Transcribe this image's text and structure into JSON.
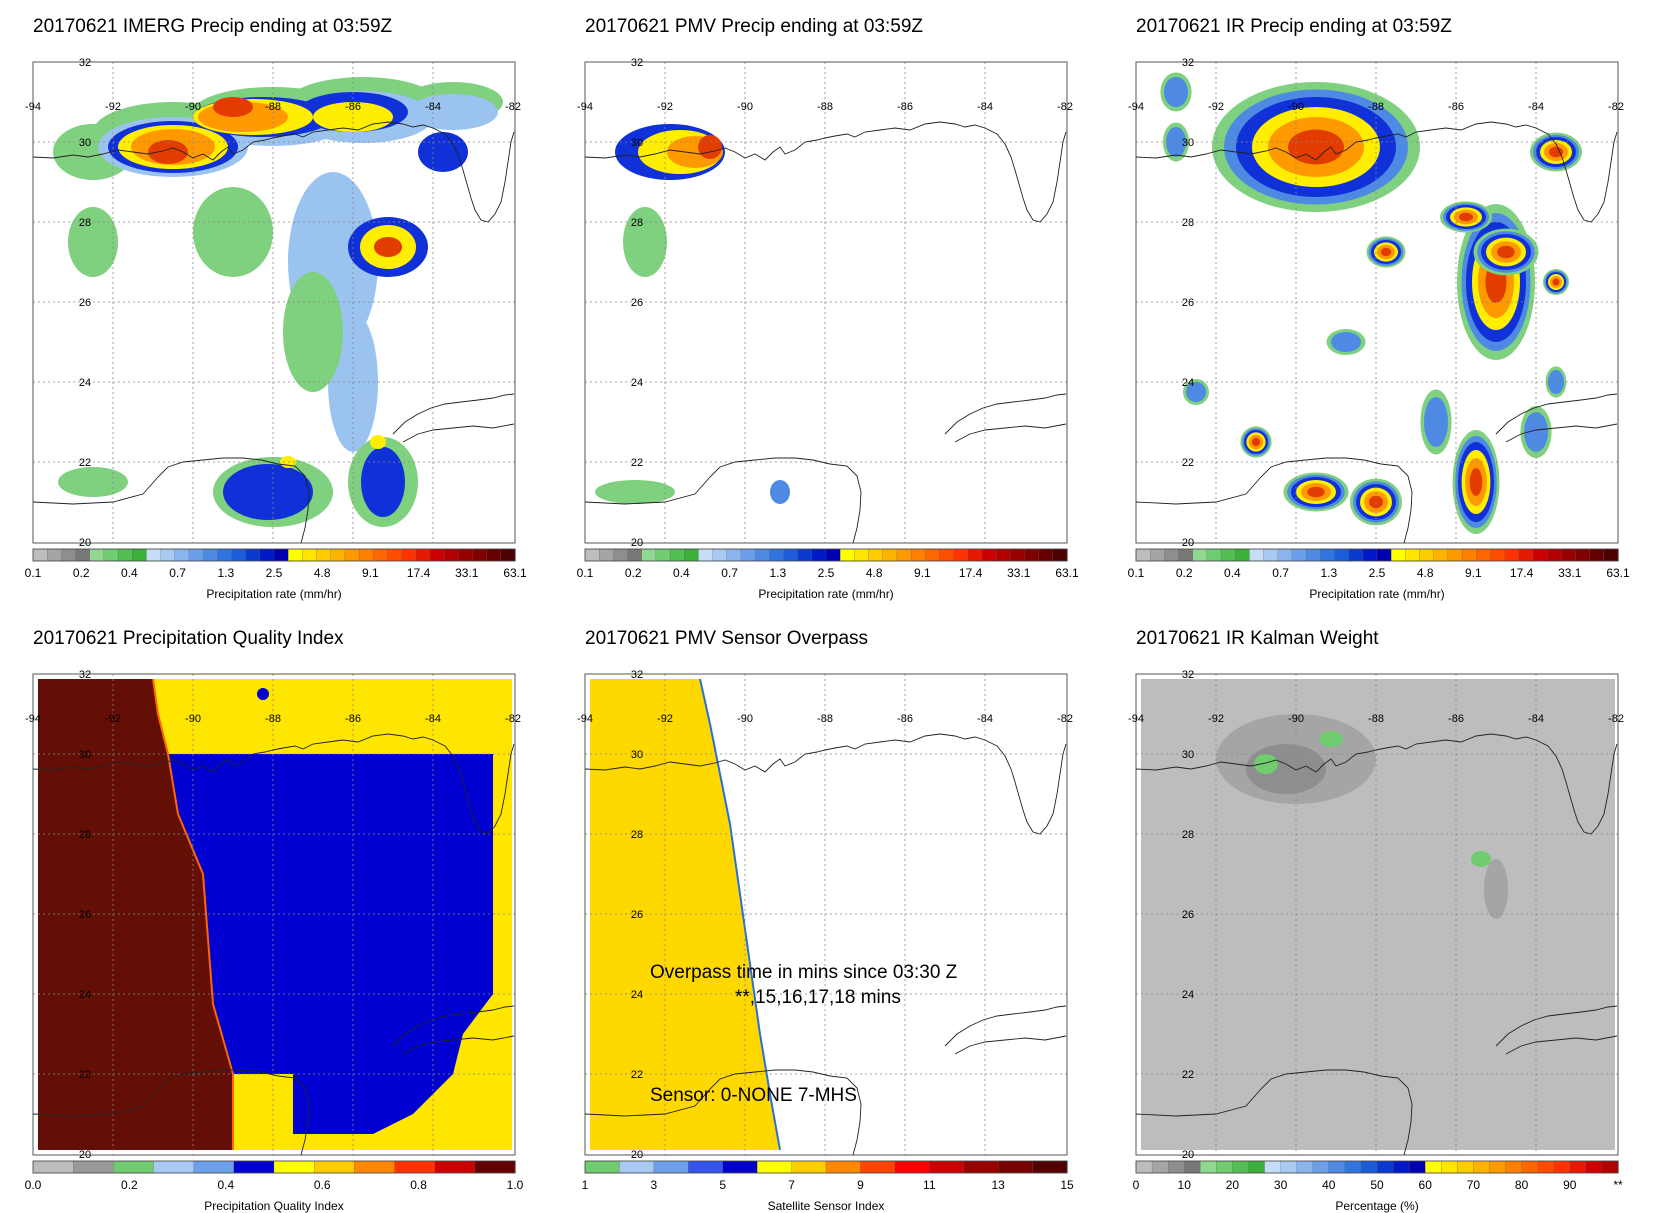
{
  "panels": [
    {
      "id": "imerg",
      "title": "20170621 IMERG Precip ending at 03:59Z",
      "lon_ticks": [
        "-94",
        "-92",
        "-90",
        "-88",
        "-86",
        "-84",
        "-82"
      ],
      "lat_ticks": [
        "32",
        "30",
        "28",
        "26",
        "24",
        "22",
        "20"
      ],
      "colorbar": {
        "title": "Precipitation rate (mm/hr)",
        "labels": [
          "0.1",
          "0.2",
          "0.4",
          "0.7",
          "1.3",
          "2.5",
          "4.8",
          "9.1",
          "17.4",
          "33.1",
          "63.1"
        ],
        "colors": [
          "#bdbdbd",
          "#a5a5a5",
          "#8e8e8e",
          "#777777",
          "#8fd88f",
          "#6fcc6f",
          "#52bf52",
          "#3ab23a",
          "#c6ddf7",
          "#a8c9f2",
          "#8ab4ee",
          "#6c9fe9",
          "#4e8ae4",
          "#3075df",
          "#1c5bd9",
          "#0a3ad2",
          "#0019c8",
          "#0000b0",
          "#ffff00",
          "#ffe600",
          "#ffcc00",
          "#ffb300",
          "#ff9900",
          "#ff8000",
          "#ff6600",
          "#ff4d00",
          "#ff3300",
          "#e61a00",
          "#cc0000",
          "#b30000",
          "#990000",
          "#800000",
          "#660000",
          "#4d0000"
        ]
      }
    },
    {
      "id": "pmv",
      "title": "20170621 PMV Precip ending at 03:59Z",
      "lon_ticks": [
        "-94",
        "-92",
        "-90",
        "-88",
        "-86",
        "-84",
        "-82"
      ],
      "lat_ticks": [
        "32",
        "30",
        "28",
        "26",
        "24",
        "22",
        "20"
      ],
      "colorbar": {
        "title": "Precipitation rate (mm/hr)",
        "labels": [
          "0.1",
          "0.2",
          "0.4",
          "0.7",
          "1.3",
          "2.5",
          "4.8",
          "9.1",
          "17.4",
          "33.1",
          "63.1"
        ],
        "colors": [
          "#bdbdbd",
          "#a5a5a5",
          "#8e8e8e",
          "#777777",
          "#8fd88f",
          "#6fcc6f",
          "#52bf52",
          "#3ab23a",
          "#c6ddf7",
          "#a8c9f2",
          "#8ab4ee",
          "#6c9fe9",
          "#4e8ae4",
          "#3075df",
          "#1c5bd9",
          "#0a3ad2",
          "#0019c8",
          "#0000b0",
          "#ffff00",
          "#ffe600",
          "#ffcc00",
          "#ffb300",
          "#ff9900",
          "#ff8000",
          "#ff6600",
          "#ff4d00",
          "#ff3300",
          "#e61a00",
          "#cc0000",
          "#b30000",
          "#990000",
          "#800000",
          "#660000",
          "#4d0000"
        ]
      }
    },
    {
      "id": "ir",
      "title": "20170621 IR Precip ending at 03:59Z",
      "lon_ticks": [
        "-94",
        "-92",
        "-90",
        "-88",
        "-86",
        "-84",
        "-82"
      ],
      "lat_ticks": [
        "32",
        "30",
        "28",
        "26",
        "24",
        "22",
        "20"
      ],
      "colorbar": {
        "title": "Precipitation rate (mm/hr)",
        "labels": [
          "0.1",
          "0.2",
          "0.4",
          "0.7",
          "1.3",
          "2.5",
          "4.8",
          "9.1",
          "17.4",
          "33.1",
          "63.1"
        ],
        "colors": [
          "#bdbdbd",
          "#a5a5a5",
          "#8e8e8e",
          "#777777",
          "#8fd88f",
          "#6fcc6f",
          "#52bf52",
          "#3ab23a",
          "#c6ddf7",
          "#a8c9f2",
          "#8ab4ee",
          "#6c9fe9",
          "#4e8ae4",
          "#3075df",
          "#1c5bd9",
          "#0a3ad2",
          "#0019c8",
          "#0000b0",
          "#ffff00",
          "#ffe600",
          "#ffcc00",
          "#ffb300",
          "#ff9900",
          "#ff8000",
          "#ff6600",
          "#ff4d00",
          "#ff3300",
          "#e61a00",
          "#cc0000",
          "#b30000",
          "#990000",
          "#800000",
          "#660000",
          "#4d0000"
        ]
      }
    },
    {
      "id": "pqi",
      "title": "20170621 Precipitation Quality Index",
      "lon_ticks": [
        "-94",
        "-92",
        "-90",
        "-88",
        "-86",
        "-84",
        "-82"
      ],
      "lat_ticks": [
        "32",
        "30",
        "28",
        "26",
        "24",
        "22",
        "20"
      ],
      "colorbar": {
        "title": "Precipitation Quality Index",
        "labels": [
          "0.0",
          "0.2",
          "0.4",
          "0.6",
          "0.8",
          "1.0"
        ],
        "colors": [
          "#bdbdbd",
          "#999999",
          "#6fcc6f",
          "#a8c9f2",
          "#6c9fe9",
          "#0000d0",
          "#ffff00",
          "#ffcc00",
          "#ff8800",
          "#ff3300",
          "#cc0000",
          "#660000"
        ]
      }
    },
    {
      "id": "overpass",
      "title": "20170621 PMV Sensor Overpass",
      "lon_ticks": [
        "-94",
        "-92",
        "-90",
        "-88",
        "-86",
        "-84",
        "-82"
      ],
      "lat_ticks": [
        "32",
        "30",
        "28",
        "26",
        "24",
        "22",
        "20"
      ],
      "annotation_line1": "Overpass time in mins since 03:30 Z",
      "annotation_line2": "**,15,16,17,18 mins",
      "annotation_sensor": "Sensor:   0-NONE  7-MHS",
      "colorbar": {
        "title": "Satellite Sensor Index",
        "labels": [
          "1",
          "3",
          "5",
          "7",
          "9",
          "11",
          "13",
          "15"
        ],
        "colors": [
          "#6fcc6f",
          "#a8c9f2",
          "#6c9fe9",
          "#3355ee",
          "#0000c8",
          "#ffff00",
          "#ffcc00",
          "#ff8800",
          "#ff4400",
          "#ff0000",
          "#cc0000",
          "#990000",
          "#770000",
          "#550000"
        ]
      }
    },
    {
      "id": "kalman",
      "title": "20170621 IR Kalman Weight",
      "lon_ticks": [
        "-94",
        "-92",
        "-90",
        "-88",
        "-86",
        "-84",
        "-82"
      ],
      "lat_ticks": [
        "32",
        "30",
        "28",
        "26",
        "24",
        "22",
        "20"
      ],
      "colorbar": {
        "title": "Percentage (%)",
        "labels": [
          "0",
          "10",
          "20",
          "30",
          "40",
          "50",
          "60",
          "70",
          "80",
          "90",
          "**"
        ],
        "colors": [
          "#bdbdbd",
          "#a5a5a5",
          "#8e8e8e",
          "#777777",
          "#8fd88f",
          "#6fcc6f",
          "#52bf52",
          "#3ab23a",
          "#c6ddf7",
          "#a8c9f2",
          "#8ab4ee",
          "#6c9fe9",
          "#4e8ae4",
          "#3075df",
          "#1c5bd9",
          "#0a3ad2",
          "#0019c8",
          "#0000b0",
          "#ffff00",
          "#ffe600",
          "#ffcc00",
          "#ffb300",
          "#ff9900",
          "#ff8000",
          "#ff6600",
          "#ff4d00",
          "#ff3300",
          "#e61a00",
          "#cc0000",
          "#b30000"
        ]
      }
    }
  ]
}
